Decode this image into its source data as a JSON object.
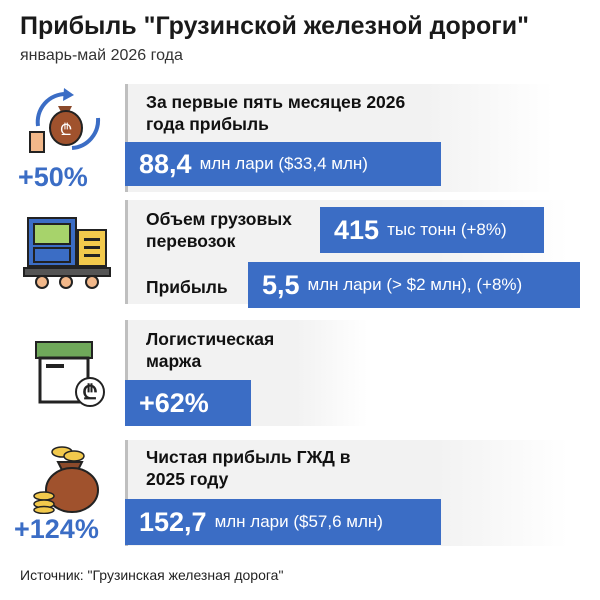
{
  "header": {
    "title": "Прибыль \"Грузинской железной дороги\"",
    "subtitle": "январь-май 2026 года"
  },
  "sections": {
    "profit5m": {
      "label": "За первые пять месяцев 2026 года прибыль",
      "value": "88,4",
      "unit": "млн лари ($33,4 млн)",
      "change": "+50%"
    },
    "freight": {
      "label": "Объем грузовых перевозок",
      "value": "415",
      "unit": "тыс тонн (+8%)"
    },
    "freight_profit": {
      "label": "Прибыль",
      "value": "5,5",
      "unit": "млн лари (> $2 млн), (+8%)"
    },
    "logistics": {
      "label": "Логистическая маржа",
      "value": "+62%"
    },
    "net2025": {
      "label": "Чистая прибыль ГЖД в 2025 году",
      "value": "152,7",
      "unit": "млн лари ($57,6 млн)",
      "change": "+124%"
    }
  },
  "footer": {
    "source": "Источник: \"Грузинская железная дорога\""
  },
  "colors": {
    "accent": "#3b6dc5",
    "bar_grey": "#f2f2f2"
  },
  "icons": [
    "money-bag-cycle-icon",
    "cargo-train-icon",
    "logistics-box-icon",
    "money-bag-coins-icon"
  ]
}
